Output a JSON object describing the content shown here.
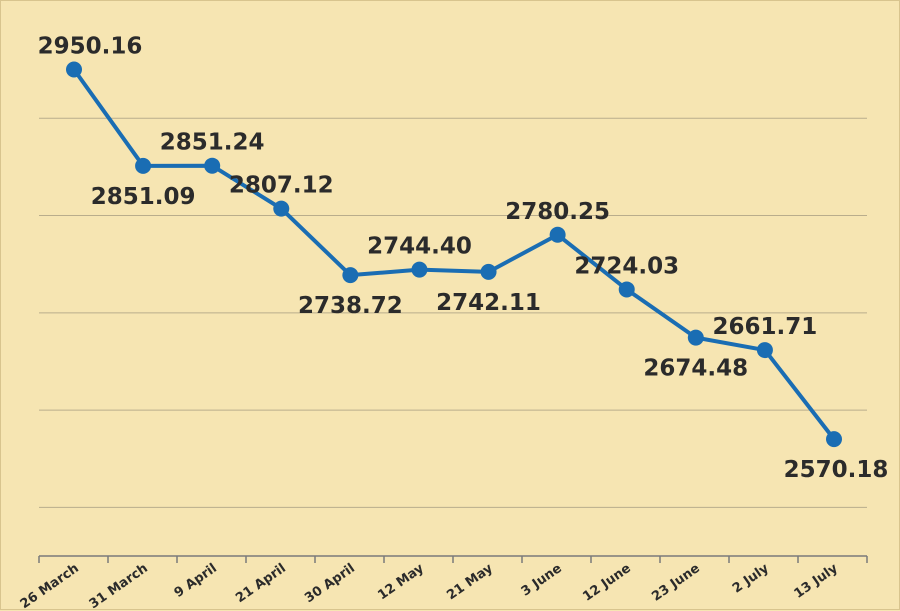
{
  "colors": {
    "background": "#F6E5B2",
    "series": "#1A6DB3"
  },
  "chart_data": {
    "type": "line",
    "title": "",
    "xlabel": "",
    "ylabel": "",
    "grid": "horizontal",
    "legend": "none",
    "ylim": [
      2450,
      3000
    ],
    "categories": [
      "26 March",
      "31 March",
      "9 April",
      "21 April",
      "30 April",
      "12 May",
      "21 May",
      "3 June",
      "12 June",
      "23 June",
      "2 July",
      "13 July"
    ],
    "series": [
      {
        "values": [
          2950.16,
          2851.09,
          2851.24,
          2807.12,
          2738.72,
          2744.4,
          2742.11,
          2780.25,
          2724.03,
          2674.48,
          2661.71,
          2570.18
        ],
        "labels": [
          "2950.16",
          "2851.09",
          "2851.24",
          "2807.12",
          "2738.72",
          "2744.40",
          "2742.11",
          "2780.25",
          "2724.03",
          "2674.48",
          "2661.71",
          "2570.18"
        ],
        "label_position": [
          "above",
          "below",
          "above",
          "above",
          "below",
          "above",
          "below",
          "above",
          "above",
          "below",
          "above",
          "below"
        ]
      }
    ]
  }
}
